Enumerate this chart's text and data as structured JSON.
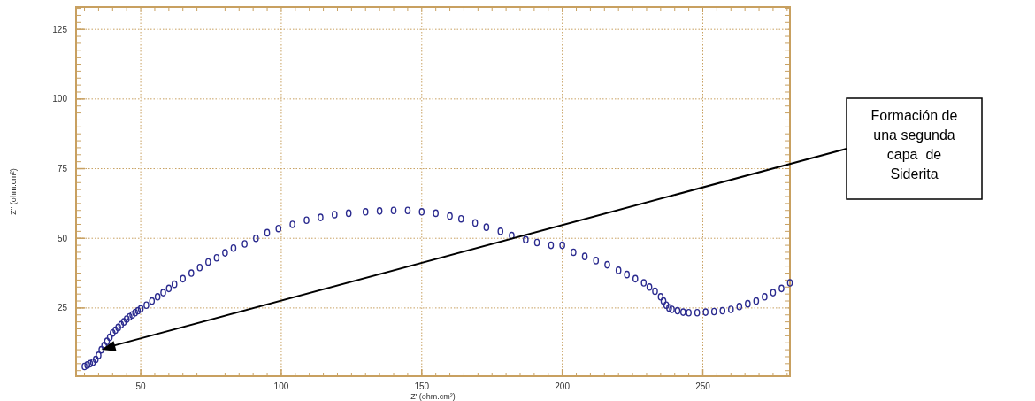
{
  "chart_data": {
    "type": "scatter",
    "xlabel": "Z' (ohm.cm²)",
    "ylabel": "Z'' (ohm.cm²)",
    "xlim": [
      27,
      281
    ],
    "ylim": [
      0.5,
      133
    ],
    "xticks": [
      50,
      100,
      150,
      200,
      250
    ],
    "yticks": [
      25,
      50,
      75,
      100,
      125
    ],
    "grid": true,
    "marker": "circle",
    "series": [
      {
        "color": "#2b2b8f",
        "x": [
          30,
          31,
          32,
          33,
          34,
          35,
          36,
          37,
          38,
          39,
          40,
          41,
          42,
          43,
          44,
          45,
          46,
          47,
          48,
          49,
          50,
          52,
          54,
          56,
          58,
          60,
          62,
          65,
          68,
          71,
          74,
          77,
          80,
          83,
          87,
          91,
          95,
          99,
          104,
          109,
          114,
          119,
          124,
          130,
          135,
          140,
          145,
          150,
          155,
          160,
          164,
          169,
          173,
          178,
          182,
          187,
          191,
          196,
          200,
          204,
          208,
          212,
          216,
          220,
          223,
          226,
          229,
          231,
          233,
          235,
          236,
          237,
          238,
          239,
          241,
          243,
          245,
          248,
          251,
          254,
          257,
          260,
          263,
          266,
          269,
          272,
          275,
          278,
          281
        ],
        "values": [
          4,
          4.5,
          5,
          5.5,
          6.5,
          8,
          10,
          11.5,
          13,
          14.5,
          16,
          17,
          18,
          19,
          20,
          21,
          21.8,
          22.5,
          23.3,
          24,
          24.7,
          26,
          27.5,
          29,
          30.5,
          32,
          33.5,
          35.5,
          37.5,
          39.5,
          41.5,
          43,
          44.8,
          46.5,
          48,
          50,
          52,
          53.5,
          55,
          56.5,
          57.5,
          58.5,
          59,
          59.5,
          59.8,
          60,
          60,
          59.5,
          59,
          58,
          57,
          55.5,
          54,
          52.5,
          51,
          49.5,
          48.5,
          47.5,
          47.5,
          45,
          43.5,
          42,
          40.5,
          38.5,
          37,
          35.5,
          34,
          32.5,
          31,
          29,
          27.5,
          26,
          25,
          24.5,
          24,
          23.5,
          23.3,
          23.3,
          23.5,
          23.7,
          24,
          24.5,
          25.5,
          26.5,
          27.5,
          29,
          30.5,
          32,
          34
        ]
      }
    ],
    "annotations": [
      "Formación de\nuna segunda\ncapa  de\nSiderita"
    ]
  }
}
